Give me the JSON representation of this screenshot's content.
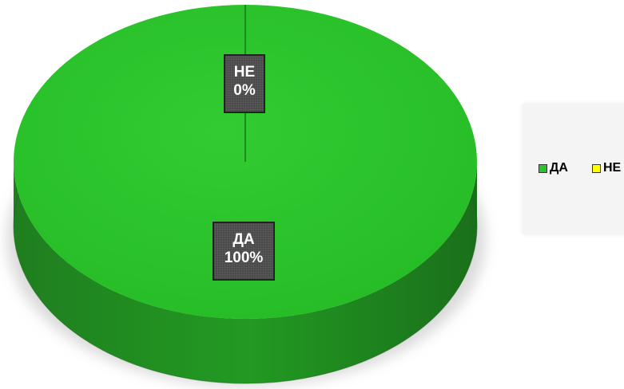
{
  "chart_data": {
    "type": "pie",
    "title": "",
    "legend_position": "right",
    "slices": [
      {
        "name": "ДА",
        "value": 100,
        "label": "100%",
        "color": "#2bc42b"
      },
      {
        "name": "НЕ",
        "value": 0,
        "label": "0%",
        "color": "#ffff00"
      }
    ]
  },
  "legend": {
    "items": [
      {
        "label": "ДА",
        "color": "#2bc42b"
      },
      {
        "label": "НЕ",
        "color": "#ffff00"
      }
    ]
  }
}
